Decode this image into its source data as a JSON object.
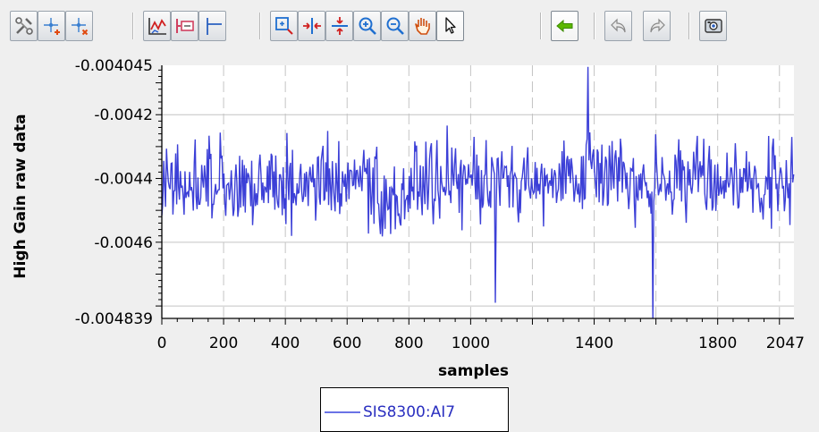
{
  "toolbar": {
    "buttons": [
      {
        "id": "config",
        "icon": "wrench-scissors-icon",
        "pressed": false
      },
      {
        "id": "add-marker",
        "icon": "add-marker-icon",
        "pressed": false
      },
      {
        "id": "remove-marker",
        "icon": "remove-marker-icon",
        "pressed": false
      },
      {
        "id": "chart-style",
        "icon": "chart-style-icon",
        "pressed": false
      },
      {
        "id": "show-legend",
        "icon": "legend-icon",
        "pressed": false
      },
      {
        "id": "show-cursor",
        "icon": "cursor-line-icon",
        "pressed": false
      },
      {
        "id": "zoom-box",
        "icon": "zoom-box-icon",
        "pressed": false
      },
      {
        "id": "zoom-horizontal",
        "icon": "zoom-horizontal-icon",
        "pressed": false
      },
      {
        "id": "zoom-vertical",
        "icon": "zoom-vertical-icon",
        "pressed": false
      },
      {
        "id": "zoom-in",
        "icon": "zoom-in-icon",
        "pressed": false
      },
      {
        "id": "zoom-out",
        "icon": "zoom-out-icon",
        "pressed": false
      },
      {
        "id": "pan",
        "icon": "hand-pan-icon",
        "pressed": false
      },
      {
        "id": "select",
        "icon": "arrow-pointer-icon",
        "pressed": true
      },
      {
        "id": "back-to-live",
        "icon": "arrow-left-icon",
        "pressed": true
      },
      {
        "id": "undo",
        "icon": "undo-icon",
        "pressed": false
      },
      {
        "id": "redo",
        "icon": "redo-icon",
        "pressed": false
      },
      {
        "id": "snapshot",
        "icon": "camera-icon",
        "pressed": false
      }
    ]
  },
  "colors": {
    "trace": "#1a1fd0",
    "legend_text": "#2a2fc0",
    "back_arrow": "#5cb800"
  },
  "chart_data": {
    "type": "line",
    "xlabel": "samples",
    "ylabel": "High Gain raw data",
    "xlim": [
      0,
      2047
    ],
    "ylim": [
      -0.004839,
      -0.004045
    ],
    "x_ticks": [
      "0",
      "200",
      "400",
      "600",
      "800",
      "1000",
      "1400",
      "1800",
      "2047"
    ],
    "y_ticks": [
      "-0.004045",
      "-0.0042",
      "-0.0044",
      "-0.0046",
      "-0.004839"
    ],
    "grid": true,
    "legend_position": "bottom-center",
    "series": [
      {
        "name": "SIS8300:AI7",
        "x_range": [
          0,
          2047
        ],
        "center": -0.00441,
        "typical_range": [
          -0.00465,
          -0.00425
        ],
        "min": -0.004839,
        "max": -0.004045
      }
    ]
  }
}
